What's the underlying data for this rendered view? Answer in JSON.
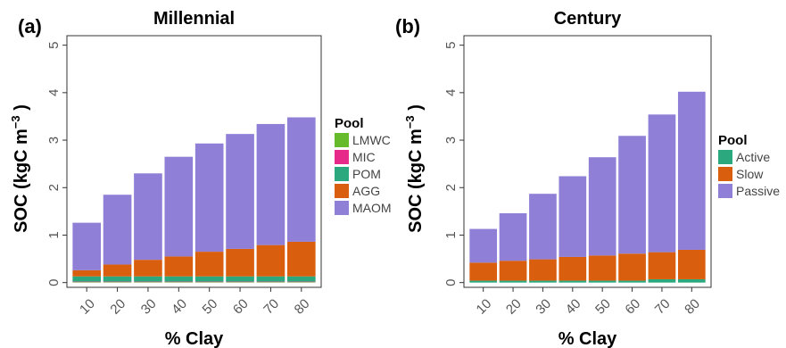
{
  "chart_data": [
    {
      "type": "bar",
      "stacked": true,
      "panel_label": "(a)",
      "title": "Millennial",
      "xlabel": "% Clay",
      "ylabel": "SOC (kgC m⁻³ )",
      "ylabel_base": "SOC (kgC m",
      "ylabel_sup": "−3",
      "ylabel_end": " )",
      "categories": [
        "10",
        "20",
        "30",
        "40",
        "50",
        "60",
        "70",
        "80"
      ],
      "yticks": [
        "0",
        "1",
        "2",
        "3",
        "4",
        "5"
      ],
      "ylim": [
        -0.1,
        5.2
      ],
      "grid": false,
      "legend_title": "Pool",
      "legend_position": "right",
      "series": [
        {
          "name": "LMWC",
          "color": "#66bb2a",
          "values": [
            0.01,
            0.01,
            0.01,
            0.01,
            0.01,
            0.01,
            0.01,
            0.01
          ]
        },
        {
          "name": "MIC",
          "color": "#e7298a",
          "values": [
            0.01,
            0.01,
            0.01,
            0.01,
            0.01,
            0.01,
            0.01,
            0.01
          ]
        },
        {
          "name": "POM",
          "color": "#2ca87f",
          "values": [
            0.11,
            0.11,
            0.11,
            0.11,
            0.11,
            0.11,
            0.11,
            0.11
          ]
        },
        {
          "name": "AGG",
          "color": "#d95f0e",
          "values": [
            0.13,
            0.25,
            0.35,
            0.42,
            0.52,
            0.58,
            0.66,
            0.73
          ]
        },
        {
          "name": "MAOM",
          "color": "#8f7fd6",
          "values": [
            1.0,
            1.47,
            1.82,
            2.1,
            2.28,
            2.42,
            2.55,
            2.62
          ]
        }
      ]
    },
    {
      "type": "bar",
      "stacked": true,
      "panel_label": "(b)",
      "title": "Century",
      "xlabel": "% Clay",
      "ylabel": "SOC (kgC m⁻³ )",
      "ylabel_base": "SOC (kgC m",
      "ylabel_sup": "−3",
      "ylabel_end": " )",
      "categories": [
        "10",
        "20",
        "30",
        "40",
        "50",
        "60",
        "70",
        "80"
      ],
      "yticks": [
        "0",
        "1",
        "2",
        "3",
        "4",
        "5"
      ],
      "ylim": [
        -0.1,
        5.2
      ],
      "grid": false,
      "legend_title": "Pool",
      "legend_position": "right",
      "series": [
        {
          "name": "Active",
          "color": "#2ca87f",
          "values": [
            0.04,
            0.04,
            0.04,
            0.04,
            0.04,
            0.04,
            0.07,
            0.07
          ]
        },
        {
          "name": "Slow",
          "color": "#d95f0e",
          "values": [
            0.38,
            0.42,
            0.45,
            0.5,
            0.53,
            0.57,
            0.57,
            0.62
          ]
        },
        {
          "name": "Passive",
          "color": "#8f7fd6",
          "values": [
            0.71,
            1.0,
            1.38,
            1.7,
            2.07,
            2.48,
            2.9,
            3.33
          ]
        }
      ]
    }
  ]
}
